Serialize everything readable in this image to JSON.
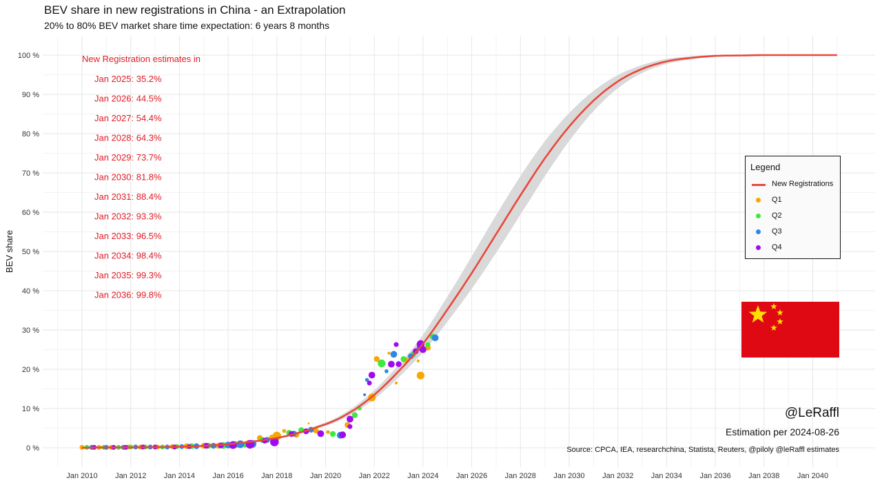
{
  "title": "BEV share in new registrations in China - an Extrapolation",
  "subtitle": "20% to 80% BEV market share time expectation: 6 years 8 months",
  "watermark": "@LeRaffl",
  "estimation_note": "Estimation per 2024-08-26",
  "source": "Source: CPCA, IEA, researchchina, Statista, Reuters, @piloly @leRaffl estimates",
  "estimates": {
    "heading": "New Registration estimates in",
    "items": [
      "Jan 2025: 35.2%",
      "Jan 2026: 44.5%",
      "Jan 2027: 54.4%",
      "Jan 2028: 64.3%",
      "Jan 2029: 73.7%",
      "Jan 2030: 81.8%",
      "Jan 2031: 88.4%",
      "Jan 2032: 93.3%",
      "Jan 2033: 96.5%",
      "Jan 2034: 98.4%",
      "Jan 2035: 99.3%",
      "Jan 2036: 99.8%"
    ]
  },
  "legend": {
    "title": "Legend",
    "items": [
      {
        "label": "New Registrations",
        "kind": "line",
        "color": "#e8473a"
      },
      {
        "label": "Q1",
        "kind": "dot",
        "color": "#f5a800"
      },
      {
        "label": "Q2",
        "kind": "dot",
        "color": "#3ee83e"
      },
      {
        "label": "Q3",
        "kind": "dot",
        "color": "#2e86e6"
      },
      {
        "label": "Q4",
        "kind": "dot",
        "color": "#a10af0"
      }
    ]
  },
  "flag": {
    "color": "#de0913",
    "star_color": "#ffde00"
  },
  "chart_data": {
    "type": "scatter",
    "title": "BEV share in new registrations in China - an Extrapolation",
    "subtitle": "20% to 80% BEV market share time expectation: 6 years 8 months",
    "xlabel": "",
    "ylabel": "BEV share",
    "x_ticks": [
      "Jan 2010",
      "Jan 2012",
      "Jan 2014",
      "Jan 2016",
      "Jan 2018",
      "Jan 2020",
      "Jan 2022",
      "Jan 2024",
      "Jan 2026",
      "Jan 2028",
      "Jan 2030",
      "Jan 2032",
      "Jan 2034",
      "Jan 2036",
      "Jan 2038",
      "Jan 2040"
    ],
    "y_ticks": [
      "0 %",
      "10 %",
      "20 %",
      "30 %",
      "40 %",
      "50 %",
      "60 %",
      "70 %",
      "80 %",
      "90 %",
      "100 %"
    ],
    "xlim": [
      2010,
      2041.8
    ],
    "ylim": [
      0,
      100
    ],
    "grid": true,
    "legend_position": "right",
    "fit_curve": {
      "name": "New Registrations",
      "color": "#e8473a",
      "band_color": "#d9d9d9",
      "x": [
        2010,
        2015,
        2018,
        2020,
        2021,
        2022,
        2023,
        2024,
        2025,
        2026,
        2027,
        2028,
        2029,
        2030,
        2031,
        2032,
        2033,
        2034,
        2035,
        2036,
        2037,
        2038,
        2039,
        2040,
        2041
      ],
      "y": [
        0,
        0.5,
        2.5,
        6,
        9,
        13.5,
        19.5,
        26.5,
        35.2,
        44.5,
        54.4,
        64.3,
        73.7,
        81.8,
        88.4,
        93.3,
        96.5,
        98.4,
        99.3,
        99.8,
        99.9,
        100,
        100,
        100,
        100
      ],
      "band_halfwidth": [
        0,
        0,
        0.2,
        0.4,
        0.6,
        0.9,
        1.2,
        1.6,
        2.2,
        2.8,
        3.2,
        3.3,
        3.1,
        2.6,
        2.0,
        1.4,
        0.9,
        0.6,
        0.4,
        0.2,
        0.1,
        0,
        0,
        0,
        0
      ]
    },
    "series": [
      {
        "name": "Q1",
        "color": "#f5a800",
        "points": [
          [
            2010.0,
            0.1,
            5
          ],
          [
            2010.7,
            0.1,
            5
          ],
          [
            2011.2,
            0.1,
            5
          ],
          [
            2011.9,
            0.2,
            5
          ],
          [
            2012.4,
            0.2,
            5
          ],
          [
            2013.1,
            0.2,
            5
          ],
          [
            2013.7,
            0.3,
            5
          ],
          [
            2014.3,
            0.4,
            6
          ],
          [
            2015.0,
            0.5,
            6
          ],
          [
            2015.6,
            0.5,
            6
          ],
          [
            2016.1,
            0.6,
            6
          ],
          [
            2016.8,
            1.0,
            7
          ],
          [
            2017.3,
            2.5,
            6
          ],
          [
            2017.8,
            2.6,
            6
          ],
          [
            2018.0,
            3.0,
            9
          ],
          [
            2018.3,
            4.3,
            4
          ],
          [
            2018.8,
            3.3,
            6
          ],
          [
            2019.3,
            6.2,
            2
          ],
          [
            2019.6,
            4.4,
            6
          ],
          [
            2020.1,
            4.0,
            4
          ],
          [
            2020.9,
            5.8,
            6
          ],
          [
            2021.9,
            12.8,
            8
          ],
          [
            2022.1,
            22.6,
            6
          ],
          [
            2022.6,
            24.1,
            3
          ],
          [
            2022.9,
            16.5,
            3
          ],
          [
            2023.3,
            22.3,
            6
          ],
          [
            2023.8,
            22.1,
            3
          ],
          [
            2023.9,
            18.4,
            8
          ],
          [
            2024.2,
            25.5,
            6
          ]
        ]
      },
      {
        "name": "Q2",
        "color": "#3ee83e",
        "points": [
          [
            2010.2,
            0.1,
            5
          ],
          [
            2010.9,
            0.1,
            5
          ],
          [
            2011.5,
            0.1,
            5
          ],
          [
            2012.0,
            0.2,
            5
          ],
          [
            2012.6,
            0.2,
            5
          ],
          [
            2013.3,
            0.2,
            5
          ],
          [
            2013.9,
            0.3,
            5
          ],
          [
            2014.5,
            0.4,
            6
          ],
          [
            2015.2,
            0.5,
            6
          ],
          [
            2015.8,
            0.6,
            7
          ],
          [
            2016.3,
            0.8,
            7
          ],
          [
            2016.7,
            0.8,
            6
          ],
          [
            2017.4,
            2.0,
            6
          ],
          [
            2018.5,
            3.8,
            6
          ],
          [
            2019.0,
            4.5,
            6
          ],
          [
            2020.3,
            3.5,
            6
          ],
          [
            2021.2,
            8.3,
            6
          ],
          [
            2021.4,
            10.0,
            4
          ],
          [
            2022.3,
            21.5,
            8
          ],
          [
            2023.2,
            22.6,
            6
          ],
          [
            2023.6,
            23.8,
            6
          ],
          [
            2024.2,
            26.3,
            5
          ],
          [
            2024.4,
            28.3,
            6
          ]
        ]
      },
      {
        "name": "Q3",
        "color": "#2e86e6",
        "points": [
          [
            2010.4,
            0.1,
            5
          ],
          [
            2011.0,
            0.1,
            5
          ],
          [
            2011.7,
            0.1,
            5
          ],
          [
            2012.2,
            0.2,
            5
          ],
          [
            2012.8,
            0.2,
            5
          ],
          [
            2013.5,
            0.2,
            5
          ],
          [
            2014.1,
            0.3,
            5
          ],
          [
            2014.7,
            0.4,
            6
          ],
          [
            2015.4,
            0.5,
            6
          ],
          [
            2016.0,
            0.7,
            7
          ],
          [
            2016.5,
            0.9,
            8
          ],
          [
            2017.0,
            1.0,
            8
          ],
          [
            2017.6,
            2.0,
            6
          ],
          [
            2018.7,
            3.6,
            6
          ],
          [
            2019.4,
            4.6,
            6
          ],
          [
            2020.6,
            3.2,
            7
          ],
          [
            2021.7,
            17.3,
            4
          ],
          [
            2021.6,
            13.5,
            3
          ],
          [
            2022.5,
            19.5,
            4
          ],
          [
            2022.8,
            23.8,
            7
          ],
          [
            2023.5,
            23.3,
            6
          ],
          [
            2023.9,
            25.6,
            8
          ],
          [
            2024.5,
            28.0,
            7
          ]
        ]
      },
      {
        "name": "Q4",
        "color": "#a10af0",
        "points": [
          [
            2010.5,
            0.1,
            5
          ],
          [
            2011.3,
            0.1,
            5
          ],
          [
            2011.8,
            0.1,
            5
          ],
          [
            2012.5,
            0.2,
            5
          ],
          [
            2013.0,
            0.2,
            5
          ],
          [
            2013.8,
            0.2,
            5
          ],
          [
            2014.4,
            0.3,
            5
          ],
          [
            2015.1,
            0.5,
            6
          ],
          [
            2015.7,
            0.6,
            6
          ],
          [
            2016.2,
            0.7,
            8
          ],
          [
            2016.9,
            0.9,
            9
          ],
          [
            2017.5,
            1.8,
            6
          ],
          [
            2017.9,
            1.5,
            9
          ],
          [
            2018.6,
            3.5,
            6
          ],
          [
            2019.2,
            4.2,
            6
          ],
          [
            2019.8,
            3.6,
            7
          ],
          [
            2020.7,
            3.3,
            7
          ],
          [
            2021.0,
            7.3,
            7
          ],
          [
            2021.0,
            5.4,
            5
          ],
          [
            2021.8,
            16.5,
            5
          ],
          [
            2021.9,
            18.5,
            7
          ],
          [
            2022.7,
            21.3,
            7
          ],
          [
            2022.9,
            26.3,
            5
          ],
          [
            2023.0,
            21.3,
            6
          ],
          [
            2023.7,
            24.6,
            6
          ],
          [
            2023.9,
            26.4,
            8
          ],
          [
            2024.0,
            25.0,
            7
          ]
        ]
      }
    ]
  }
}
